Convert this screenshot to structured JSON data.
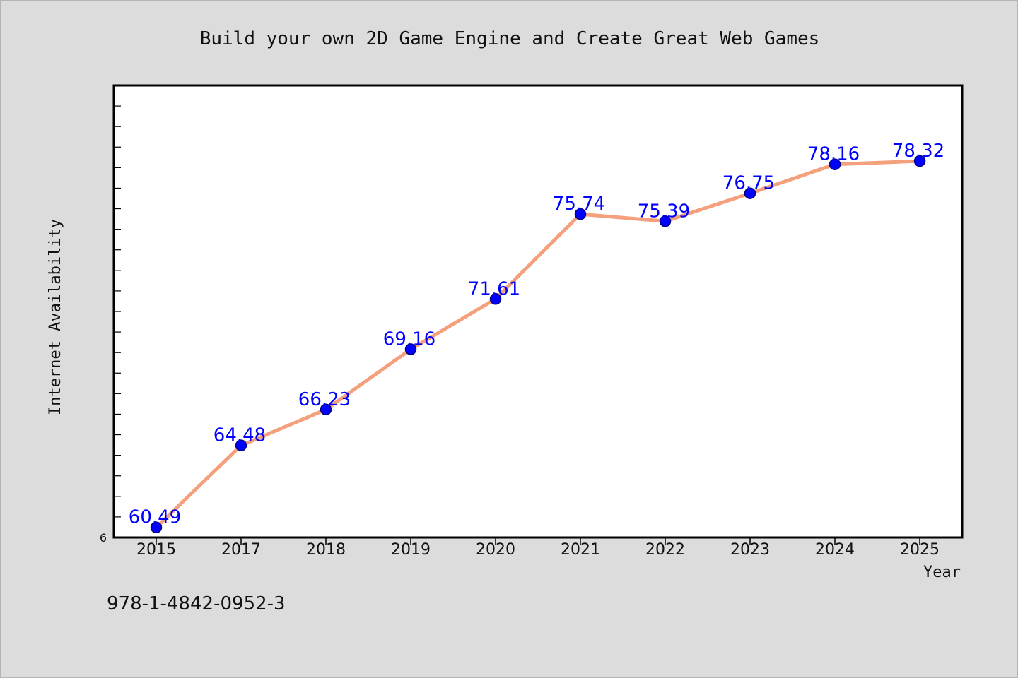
{
  "footer": {
    "code": "978-1-4842-0952-3"
  },
  "colors": {
    "background": "#dcdcdc",
    "plot_background": "#ffffff",
    "line": "#f4a07c",
    "marker": "#0000ff",
    "marker_edge": "#000080",
    "label": "#0000ff"
  },
  "chart_data": {
    "type": "line",
    "title": "Build your own 2D Game Engine and Create Great Web Games",
    "xlabel": "Year",
    "ylabel": "Internet Availability",
    "categories": [
      "2015",
      "2017",
      "2018",
      "2019",
      "2020",
      "2021",
      "2022",
      "2023",
      "2024",
      "2025"
    ],
    "series": [
      {
        "values": [
          60.49,
          64.48,
          66.23,
          69.16,
          71.61,
          75.74,
          75.39,
          76.75,
          78.16,
          78.32
        ]
      }
    ],
    "data_labels": [
      "60.49",
      "64.48",
      "66.23",
      "69.16",
      "71.61",
      "75.74",
      "75.39",
      "76.75",
      "78.16",
      "78.32"
    ],
    "ylim": [
      60,
      82
    ],
    "y_tick_labels_visible": [
      "6"
    ],
    "grid": false,
    "legend": "none"
  }
}
